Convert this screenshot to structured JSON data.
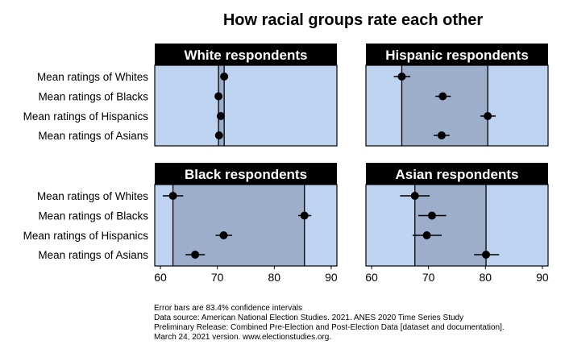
{
  "chart_data": {
    "type": "scatter",
    "title": "How racial groups rate each other",
    "row_labels": [
      "Mean ratings of Whites",
      "Mean ratings of Blacks",
      "Mean ratings of Hispanics",
      "Mean ratings of Asians"
    ],
    "xlim": [
      59,
      91
    ],
    "xticks": [
      60,
      70,
      80,
      90
    ],
    "colors": {
      "panel_bg": "#bdd3ef",
      "range_band": "#9daeca",
      "header_bg": "#000000",
      "header_text": "#ffffff",
      "point": "#000000"
    },
    "panels": [
      {
        "title": "White respondents",
        "lines": [
          70.2,
          71.2
        ],
        "points": [
          {
            "mean": 71.2,
            "lo": 70.7,
            "hi": 71.7
          },
          {
            "mean": 70.2,
            "lo": 69.7,
            "hi": 70.7
          },
          {
            "mean": 70.6,
            "lo": 70.1,
            "hi": 71.1
          },
          {
            "mean": 70.3,
            "lo": 69.8,
            "hi": 70.8
          }
        ]
      },
      {
        "title": "Hispanic respondents",
        "lines": [
          65.3,
          80.4
        ],
        "points": [
          {
            "mean": 65.3,
            "lo": 63.9,
            "hi": 66.8
          },
          {
            "mean": 72.5,
            "lo": 71.2,
            "hi": 73.9
          },
          {
            "mean": 80.4,
            "lo": 79.1,
            "hi": 81.8
          },
          {
            "mean": 72.3,
            "lo": 70.9,
            "hi": 73.7
          }
        ]
      },
      {
        "title": "Black respondents",
        "lines": [
          62.2,
          85.3
        ],
        "points": [
          {
            "mean": 62.2,
            "lo": 60.4,
            "hi": 64.0
          },
          {
            "mean": 85.3,
            "lo": 84.2,
            "hi": 86.5
          },
          {
            "mean": 71.1,
            "lo": 69.7,
            "hi": 72.6
          },
          {
            "mean": 66.1,
            "lo": 64.4,
            "hi": 67.8
          }
        ]
      },
      {
        "title": "Asian respondents",
        "lines": [
          67.6,
          80.1
        ],
        "points": [
          {
            "mean": 67.6,
            "lo": 65.0,
            "hi": 70.2
          },
          {
            "mean": 70.6,
            "lo": 68.2,
            "hi": 73.1
          },
          {
            "mean": 69.7,
            "lo": 67.2,
            "hi": 72.3
          },
          {
            "mean": 80.1,
            "lo": 78.0,
            "hi": 82.4
          }
        ]
      }
    ],
    "footnote": [
      "Error bars are 83.4% confidence intervals",
      "Data source: American National Election Studies. 2021. ANES 2020 Time Series Study",
      "Preliminary Release: Combined Pre-Election and Post-Election Data [dataset and documentation].",
      "March 24, 2021 version. www.electionstudies.org."
    ]
  }
}
